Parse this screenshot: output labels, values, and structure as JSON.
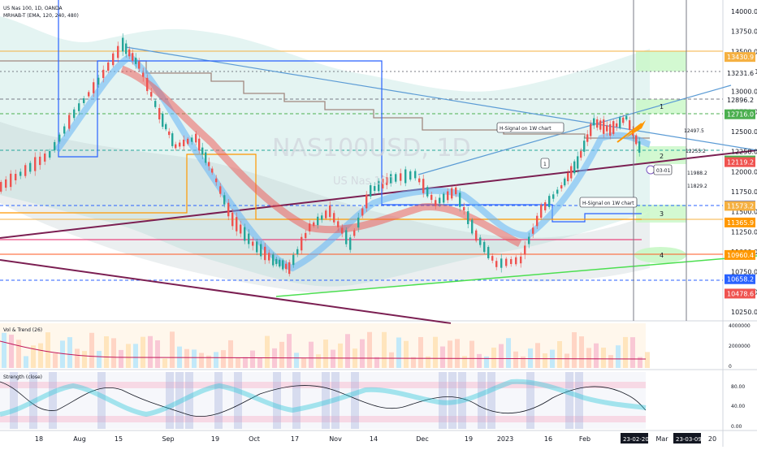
{
  "header": {
    "symbol_line": "US Nas 100, 1D, OANDA",
    "indicator_line": "MRHAB-T (EMA, 120, 240, 480)"
  },
  "watermark": {
    "symbol": "NAS100USD, 1D",
    "name": "US Nas 100"
  },
  "chart_data": [
    {
      "type": "candlestick",
      "title": "",
      "x_ticks": [
        "18",
        "Aug",
        "15",
        "Sep",
        "19",
        "Oct",
        "17",
        "Nov",
        "14",
        "Dec",
        "19",
        "2023",
        "16",
        "Feb",
        "Mar",
        "20"
      ],
      "highlighted_x_labels": [
        "23-02-20",
        "23-03-09"
      ],
      "y_ticks": [
        10250,
        10500,
        10750,
        11000,
        11250,
        11500,
        11750,
        12000,
        12250,
        12500,
        12750,
        13000,
        13250,
        13500,
        13750,
        14000
      ],
      "ylim": [
        10250,
        14000
      ],
      "price_labels": [
        {
          "value": "13430.9",
          "color": "#f5b041"
        },
        {
          "value": "13231.6",
          "color": "#ffffff"
        },
        {
          "value": "12896.2",
          "color": "#ffffff"
        },
        {
          "value": "12716.0",
          "color": "#4caf50"
        },
        {
          "value": "12139.2",
          "color": "#4caf50"
        },
        {
          "value": "12119.2",
          "color": "#ef5350"
        },
        {
          "value": "11578.2",
          "color": "#2962ff"
        },
        {
          "value": "11573.2",
          "color": "#f5b041"
        },
        {
          "value": "11365.9",
          "color": "#ff9800"
        },
        {
          "value": "10960.4",
          "color": "#ff9800"
        },
        {
          "value": "10658.2",
          "color": "#2962ff"
        },
        {
          "value": "10478.6",
          "color": "#ef5350"
        }
      ],
      "level_annotations": [
        "12497.5",
        "12255.2",
        "11988.2",
        "11829.2"
      ],
      "zone_labels": [
        "1",
        "2",
        "3",
        "4"
      ],
      "callouts": [
        "H-Signal on 1W chart",
        "H-Signal on 1W chart"
      ],
      "markers": [
        "1",
        "03-01"
      ]
    },
    {
      "type": "bar",
      "title": "Vol & Trend (26)",
      "y_ticks": [
        "4000000",
        "2000000",
        "0"
      ]
    },
    {
      "type": "line",
      "title": "Strength (close)",
      "y_ticks": [
        "80.00",
        "40.00",
        "0.00"
      ]
    }
  ]
}
